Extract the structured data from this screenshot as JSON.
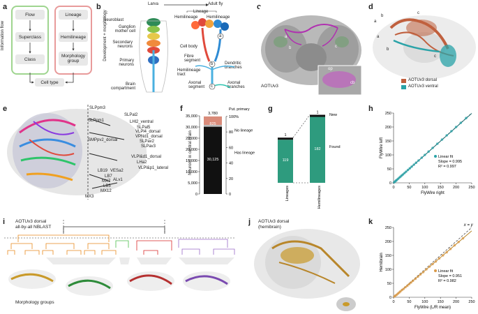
{
  "panels": {
    "a": "a",
    "b": "b",
    "c": "c",
    "d": "d",
    "e": "e",
    "f": "f",
    "g": "g",
    "h": "h",
    "i": "i",
    "j": "j",
    "k": "k"
  },
  "a": {
    "left_title": "Information flow",
    "right_title": "Development + morphology",
    "left_boxes": [
      "Flow",
      "Superclass",
      "Class"
    ],
    "right_boxes": [
      "Lineage",
      "Hemilineage",
      "Morphology group"
    ],
    "bottom": "Cell type"
  },
  "b": {
    "top_left": "Larva",
    "top_right": "Adult fly",
    "left_labels": [
      "Neuroblast",
      "Ganglion mother cell",
      "Secondary neurons",
      "Primary neurons",
      "Brain compartment"
    ],
    "lineage": "Lineage",
    "hemi_left": "Hemilineage",
    "hemi_right": "Hemilineage",
    "right_labels": [
      "Cell body",
      "Fibre segment",
      "Hemilineage tract",
      "Dendritic branches",
      "Axonal segment",
      "Axonal branches"
    ],
    "letters": [
      "a",
      "b",
      "c"
    ]
  },
  "c": {
    "label": "AOTUv3",
    "inset_labels": [
      "op",
      "cb"
    ],
    "letters": [
      "a",
      "b",
      "c",
      "a",
      "b",
      "c"
    ]
  },
  "d": {
    "legend": [
      "AOTUv3 dorsal",
      "AOTUv3 ventral"
    ],
    "letters": [
      "a",
      "b",
      "c",
      "a",
      "b",
      "c"
    ],
    "colors": [
      "#c0603e",
      "#2aa3a8"
    ]
  },
  "e": {
    "labels": [
      "SLPpm3",
      "SLPal2",
      "SLPpm1",
      "LHl2_ventral",
      "SLPal5",
      "VLPl4_dorsal",
      "SMPpv2_dorsal",
      "VPNd1_dorsal",
      "SLPav2",
      "SLPav3",
      "VLPl&d1_dorsal",
      "LHa2",
      "VLPl&p1_lateral",
      "LB19",
      "VESa2",
      "LB7",
      "MX7",
      "ALv1",
      "LB5",
      "MX12",
      "MX3"
    ]
  },
  "f": {
    "ylabel": "Neurons in central brain",
    "left_ticks": [
      "0",
      "5,000",
      "10,000",
      "15,000",
      "20,000",
      "25,000",
      "30,000",
      "35,000"
    ],
    "right_ticks": [
      "0",
      "20",
      "40",
      "60",
      "80",
      "100%"
    ],
    "top_value": "3,780",
    "mid_value": "825",
    "bar_value": "30,125",
    "ann": [
      "Put. primary",
      "100%",
      "No lineage",
      "Has lineage"
    ]
  },
  "g": {
    "xlabels": [
      "Lineages",
      "Hemilineages"
    ],
    "top_values": [
      "1",
      "1"
    ],
    "bar_values": [
      "119",
      "182"
    ],
    "ann": [
      "New",
      "Found"
    ]
  },
  "h": {
    "xlabel": "FlyWire right",
    "ylabel": "FlyWire left",
    "ticks": [
      "0",
      "50",
      "100",
      "150",
      "200",
      "250"
    ],
    "legend": "Linear fit",
    "slope": "Slope = 0.995",
    "r2": "R² = 0.997"
  },
  "i": {
    "title": "AOTUv3 dorsal",
    "subtitle": "all-by-all NBLAST",
    "bottom": "Morphology groups"
  },
  "j": {
    "title": "AOTUv3 dorsal",
    "subtitle": "(hemibrain)"
  },
  "k": {
    "xlabel": "FlyWire (L/R mean)",
    "ylabel": "Hemibrain",
    "ticks": [
      "0",
      "50",
      "100",
      "150",
      "200",
      "250"
    ],
    "xy": "x = y",
    "legend": "Linear fit",
    "slope": "Slope = 0.951",
    "r2": "R² = 0.982"
  },
  "chart_data": [
    {
      "type": "bar",
      "panel": "f",
      "categories": [
        "Central brain"
      ],
      "series": [
        {
          "name": "Has lineage",
          "values": [
            30125
          ]
        },
        {
          "name": "No lineage",
          "values": [
            825
          ]
        },
        {
          "name": "Put. primary",
          "values": [
            3780
          ]
        }
      ],
      "ylabel": "Neurons in central brain",
      "ylim": [
        0,
        35000
      ]
    },
    {
      "type": "bar",
      "panel": "g",
      "categories": [
        "Lineages",
        "Hemilineages"
      ],
      "series": [
        {
          "name": "Found",
          "values": [
            119,
            182
          ]
        },
        {
          "name": "New",
          "values": [
            1,
            1
          ]
        }
      ]
    },
    {
      "type": "scatter",
      "panel": "h",
      "xlabel": "FlyWire right",
      "ylabel": "FlyWire left",
      "xlim": [
        0,
        250
      ],
      "ylim": [
        0,
        250
      ],
      "x": [
        2,
        5,
        8,
        10,
        14,
        18,
        22,
        26,
        30,
        35,
        40,
        46,
        52,
        58,
        65,
        72,
        80,
        90,
        100,
        112,
        125,
        140,
        155,
        170,
        185,
        200,
        215,
        232
      ],
      "y": [
        2,
        5,
        8,
        10,
        14,
        18,
        22,
        26,
        30,
        35,
        40,
        46,
        52,
        58,
        65,
        72,
        80,
        90,
        100,
        112,
        125,
        140,
        155,
        170,
        185,
        200,
        215,
        232
      ],
      "fit": {
        "slope": 0.995,
        "r2": 0.997
      }
    },
    {
      "type": "scatter",
      "panel": "k",
      "xlabel": "FlyWire (L/R mean)",
      "ylabel": "Hemibrain",
      "xlim": [
        0,
        250
      ],
      "ylim": [
        0,
        250
      ],
      "x": [
        3,
        6,
        10,
        14,
        18,
        22,
        27,
        32,
        38,
        44,
        50,
        56,
        62,
        70,
        78,
        86,
        95,
        105,
        115,
        125,
        135,
        146,
        158,
        170,
        182,
        195,
        208,
        222
      ],
      "y": [
        3,
        6,
        9,
        13,
        17,
        21,
        26,
        30,
        36,
        41,
        47,
        53,
        59,
        66,
        74,
        82,
        90,
        100,
        110,
        119,
        128,
        139,
        150,
        161,
        173,
        186,
        198,
        211
      ],
      "fit": {
        "slope": 0.951,
        "r2": 0.982
      }
    }
  ]
}
